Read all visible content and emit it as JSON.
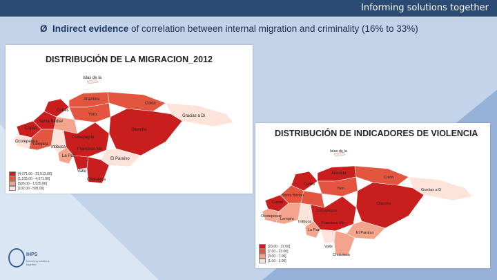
{
  "header": {
    "tagline": "Informing solutions together"
  },
  "bullet": {
    "arrow": "Ø",
    "bold_text": "Indirect evidence",
    "rest_text": " of correlation between internal migration and criminality (16% to 33%)"
  },
  "map_migration": {
    "title": "DISTRIBUCIÓN DE LA MIGRACION_2012",
    "labels": [
      "Islas de la",
      "Atlántida",
      "Colón",
      "Cortés",
      "Yoro",
      "Gracias a Di",
      "Santa Bárbar",
      "Copan",
      "Olancho",
      "Ocotepeque",
      "Lempira",
      "Intibuca",
      "Comayagua",
      "Francisco Mo",
      "La Paz",
      "El Paraíso",
      "Valle",
      "Choluteca"
    ],
    "legend": [
      "[4,071.00 - 31,513.00]",
      "[1,535.00 - 4,071.00]",
      "[595.00 - 1,535.00]",
      "[102.00 - 595.00]"
    ]
  },
  "map_violence": {
    "title": "DISTRIBUCIÓN DE INDICADORES DE VIOLENCIA",
    "labels": [
      "Islas de la",
      "Atlántida",
      "Colón",
      "Cortés",
      "Yoro",
      "Gracias a D",
      "Santa Bárbar",
      "Copan",
      "Olancho",
      "Ocotepeque",
      "Lempira",
      "Intibuca",
      "Comayagua",
      "Francisco Mo",
      "La Paz",
      "El Paraíso",
      "Valle",
      "Choluteca"
    ],
    "legend": [
      "[23.00 - 37.00]",
      "[7.00 - 23.00]",
      "[3.00 - 7.00]",
      "[1.00 - 3.00]"
    ]
  },
  "logo": {
    "acronym": "IHPS",
    "subtitle": "Informing solutions together"
  },
  "colors": {
    "c1": "#c81e1e",
    "c2": "#e4553f",
    "c3": "#f4a48c",
    "c4": "#fde3d9",
    "header_bg": "#2b4a73",
    "slide_bg": "#a9bfe0"
  }
}
